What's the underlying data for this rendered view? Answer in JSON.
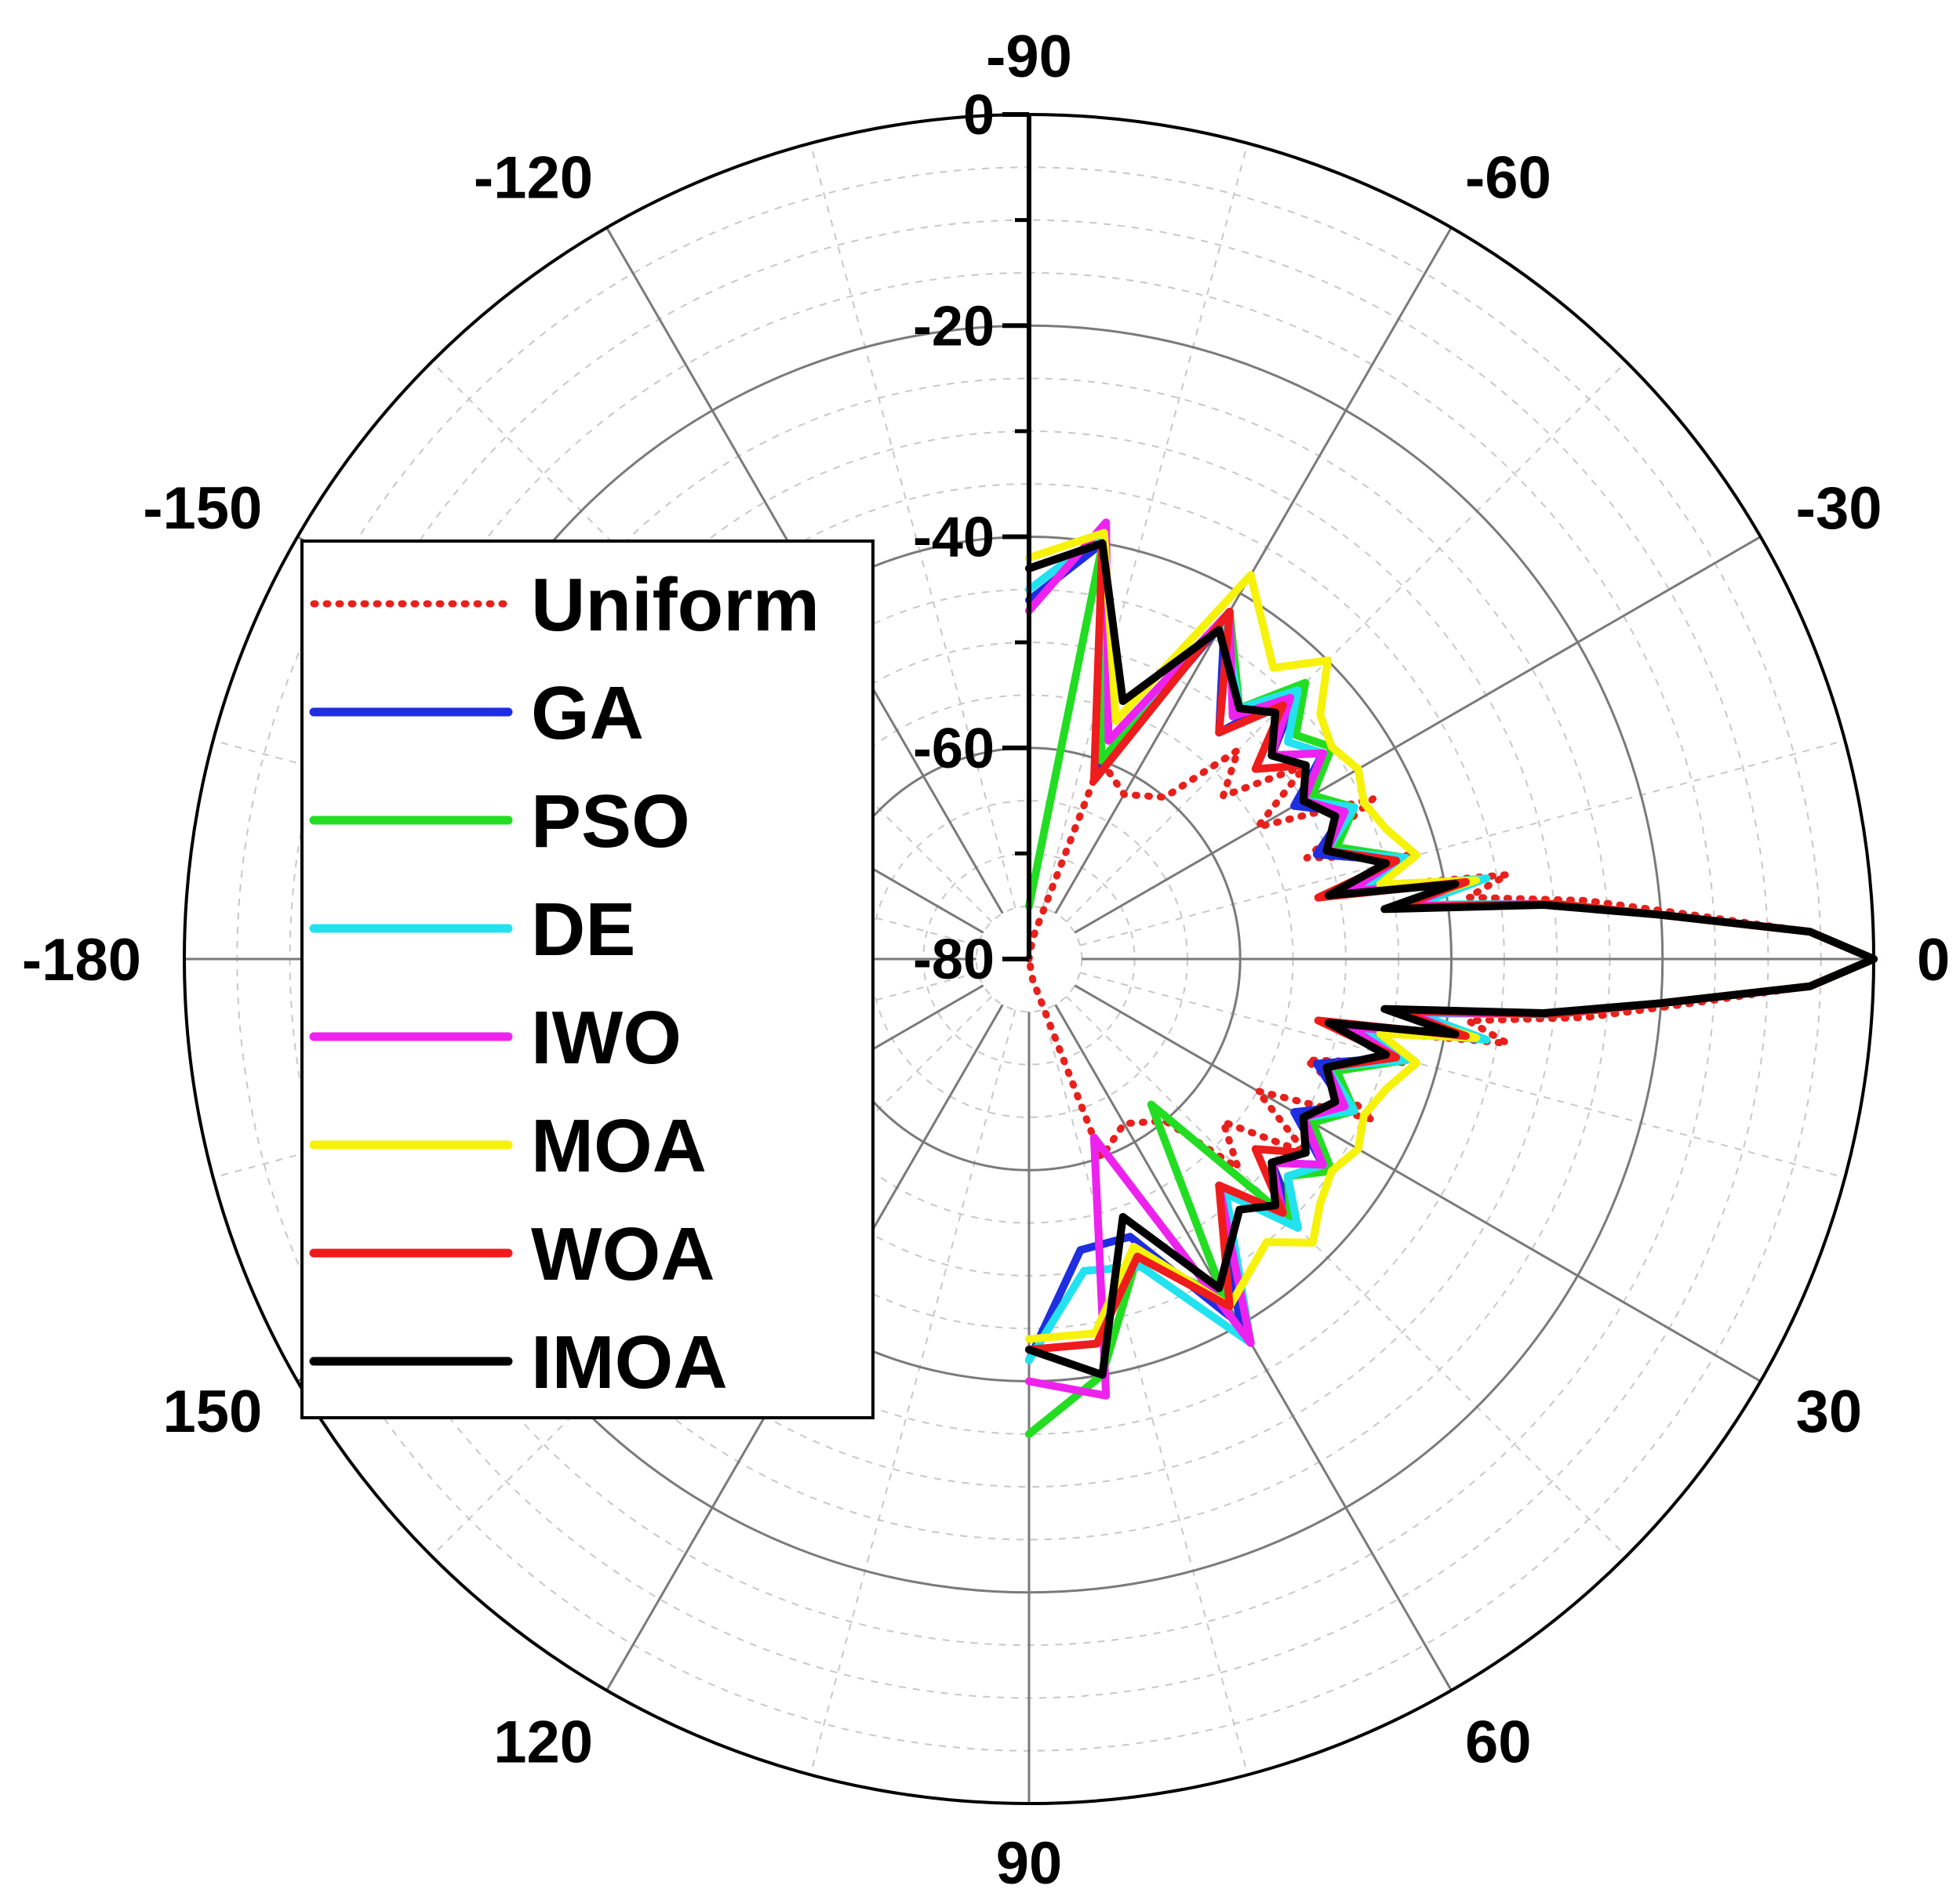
{
  "chart_data": {
    "type": "polar-line",
    "title": "",
    "angle_unit": "deg",
    "radial_unit": "dB",
    "angular_ticks": [
      "0",
      "-30",
      "-60",
      "-90",
      "-120",
      "-150",
      "-180",
      "150",
      "120",
      "90",
      "60",
      "30"
    ],
    "angular_tick_values": [
      0,
      -30,
      -60,
      -90,
      -120,
      -150,
      -180,
      150,
      120,
      90,
      60,
      30
    ],
    "radial_ticks": [
      "0",
      "-20",
      "-40",
      "-60",
      "-80"
    ],
    "radial_tick_values": [
      0,
      -20,
      -40,
      -60,
      -80
    ],
    "rlim": [
      -80,
      0
    ],
    "theta_range_plotted": [
      -90,
      90
    ],
    "grid": true,
    "legend_position": "left",
    "series": [
      {
        "name": "Uniform",
        "style": "dotted",
        "color": "#e8201c",
        "x": [
          -90,
          -80,
          -70,
          -60,
          -50,
          -45,
          -40,
          -35,
          -30,
          -25,
          -20,
          -15,
          -12,
          -10,
          -8,
          -6,
          -4,
          -2,
          0,
          2,
          4,
          6,
          8,
          10,
          12,
          15,
          20,
          25,
          30,
          35,
          40,
          45,
          50,
          60,
          70,
          80,
          90
        ],
        "y": [
          -80,
          -78,
          -60,
          -62,
          -60,
          -52,
          -56,
          -48,
          -55,
          -44,
          -52,
          -42,
          -47,
          -34,
          -38,
          -27,
          -18,
          -6,
          0,
          -6,
          -18,
          -27,
          -38,
          -34,
          -47,
          -42,
          -52,
          -44,
          -55,
          -48,
          -56,
          -52,
          -60,
          -62,
          -60,
          -78,
          -80
        ]
      },
      {
        "name": "GA",
        "style": "solid",
        "color": "#1f2ee0",
        "x": [
          -90,
          -80,
          -70,
          -60,
          -50,
          -45,
          -40,
          -35,
          -30,
          -25,
          -20,
          -15,
          -12,
          -10,
          -8,
          -6,
          -4,
          -2,
          0,
          2,
          4,
          6,
          8,
          10,
          12,
          15,
          20,
          25,
          30,
          35,
          40,
          45,
          50,
          60,
          70,
          80,
          90
        ],
        "y": [
          -46,
          -40,
          -61,
          -43,
          -52,
          -44,
          -50,
          -46,
          -51,
          -47,
          -51,
          -44,
          -50,
          -38,
          -44,
          -30,
          -20,
          -6,
          0,
          -6,
          -20,
          -30,
          -44,
          -38,
          -50,
          -44,
          -51,
          -47,
          -51,
          -46,
          -50,
          -44,
          -52,
          -40,
          -52,
          -52,
          -42
        ]
      },
      {
        "name": "PSO",
        "style": "solid",
        "color": "#22dd22",
        "x": [
          -90,
          -80,
          -70,
          -60,
          -50,
          -45,
          -40,
          -35,
          -30,
          -25,
          -20,
          -15,
          -12,
          -10,
          -8,
          -6,
          -4,
          -2,
          0,
          2,
          4,
          6,
          8,
          10,
          12,
          15,
          20,
          25,
          30,
          35,
          40,
          45,
          50,
          60,
          70,
          80,
          90
        ],
        "y": [
          -75,
          -41,
          -60,
          -42,
          -49,
          -43,
          -47,
          -45,
          -49,
          -46,
          -49,
          -43,
          -48,
          -37,
          -43,
          -30,
          -20,
          -6,
          0,
          -6,
          -20,
          -30,
          -43,
          -37,
          -48,
          -43,
          -49,
          -46,
          -49,
          -45,
          -48,
          -45,
          -62,
          -43,
          -50,
          -40,
          -35
        ]
      },
      {
        "name": "DE",
        "style": "solid",
        "color": "#22e2f0",
        "x": [
          -90,
          -80,
          -70,
          -60,
          -50,
          -45,
          -40,
          -35,
          -30,
          -25,
          -20,
          -15,
          -12,
          -10,
          -8,
          -6,
          -4,
          -2,
          0,
          2,
          4,
          6,
          8,
          10,
          12,
          15,
          20,
          25,
          30,
          35,
          40,
          45,
          50,
          60,
          70,
          80,
          90
        ],
        "y": [
          -45,
          -39,
          -58,
          -43,
          -49,
          -44,
          -48,
          -46,
          -50,
          -46,
          -50,
          -43,
          -48,
          -36,
          -43,
          -30,
          -20,
          -6,
          0,
          -6,
          -20,
          -30,
          -43,
          -36,
          -48,
          -43,
          -50,
          -46,
          -50,
          -46,
          -48,
          -44,
          -51,
          -38,
          -49,
          -50,
          -42
        ]
      },
      {
        "name": "IWO",
        "style": "solid",
        "color": "#ee22ee",
        "x": [
          -90,
          -80,
          -70,
          -60,
          -50,
          -45,
          -40,
          -35,
          -30,
          -25,
          -20,
          -15,
          -12,
          -10,
          -8,
          -6,
          -4,
          -2,
          0,
          2,
          4,
          6,
          8,
          10,
          12,
          15,
          20,
          25,
          30,
          35,
          40,
          45,
          50,
          60,
          70,
          80,
          90
        ],
        "y": [
          -47,
          -38,
          -58,
          -42,
          -50,
          -45,
          -50,
          -46,
          -50,
          -47,
          -50,
          -44,
          -49,
          -38,
          -44,
          -30,
          -20,
          -6,
          0,
          -6,
          -20,
          -30,
          -44,
          -38,
          -49,
          -44,
          -50,
          -47,
          -50,
          -46,
          -50,
          -46,
          -52,
          -38,
          -62,
          -38,
          -40
        ]
      },
      {
        "name": "MOA",
        "style": "solid",
        "color": "#f6f20a",
        "x": [
          -90,
          -80,
          -70,
          -60,
          -50,
          -45,
          -40,
          -35,
          -30,
          -25,
          -20,
          -15,
          -12,
          -10,
          -8,
          -6,
          -4,
          -2,
          0,
          2,
          4,
          6,
          8,
          10,
          12,
          15,
          20,
          25,
          30,
          35,
          40,
          45,
          50,
          60,
          70,
          80,
          90
        ],
        "y": [
          -42,
          -39,
          -56,
          -38,
          -44,
          -40,
          -44,
          -45,
          -44,
          -45,
          -44,
          -42,
          -46,
          -37,
          -46,
          -30,
          -20,
          -6,
          0,
          -6,
          -20,
          -30,
          -46,
          -37,
          -46,
          -42,
          -44,
          -45,
          -44,
          -45,
          -44,
          -42,
          -45,
          -42,
          -51,
          -44,
          -44
        ]
      },
      {
        "name": "WOA",
        "style": "solid",
        "color": "#ee1c1c",
        "x": [
          -90,
          -80,
          -70,
          -60,
          -50,
          -45,
          -40,
          -35,
          -30,
          -25,
          -20,
          -15,
          -12,
          -10,
          -8,
          -6,
          -4,
          -2,
          0,
          2,
          4,
          6,
          8,
          10,
          12,
          15,
          20,
          25,
          30,
          35,
          40,
          45,
          50,
          60,
          70,
          80,
          90
        ],
        "y": [
          -43,
          -40,
          -62,
          -42,
          -52,
          -46,
          -52,
          -48,
          -50,
          -48,
          -50,
          -44,
          -52,
          -38,
          -45,
          -30,
          -20,
          -6,
          0,
          -6,
          -20,
          -30,
          -45,
          -38,
          -52,
          -44,
          -50,
          -48,
          -50,
          -48,
          -52,
          -46,
          -52,
          -42,
          -50,
          -43,
          -43
        ]
      },
      {
        "name": "IMOA",
        "style": "solid",
        "color": "#000000",
        "x": [
          -90,
          -80,
          -70,
          -60,
          -50,
          -45,
          -40,
          -35,
          -30,
          -25,
          -20,
          -15,
          -12,
          -10,
          -8,
          -6,
          -4,
          -2,
          0,
          2,
          4,
          6,
          8,
          10,
          12,
          15,
          20,
          25,
          30,
          35,
          40,
          45,
          50,
          60,
          70,
          80,
          90
        ],
        "y": [
          -43,
          -40,
          -54,
          -44,
          -49,
          -47,
          -50,
          -48,
          -50,
          -48,
          -50,
          -45,
          -51,
          -39,
          -46,
          -31,
          -20,
          -6,
          0,
          -6,
          -20,
          -31,
          -46,
          -39,
          -51,
          -45,
          -50,
          -48,
          -50,
          -48,
          -50,
          -47,
          -49,
          -44,
          -54,
          -40,
          -43
        ]
      }
    ]
  }
}
